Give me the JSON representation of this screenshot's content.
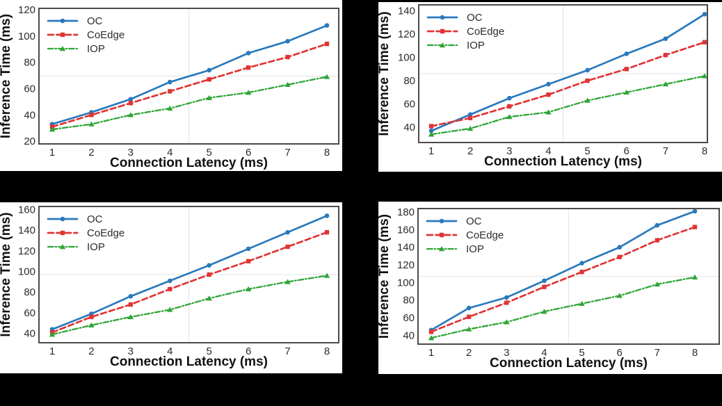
{
  "page": {
    "background": "#000000"
  },
  "shared": {
    "xlabel": "Connection Latency (ms)",
    "ylabel": "Inference Time (ms)",
    "legend": [
      "OC",
      "CoEdge",
      "IOP"
    ]
  },
  "colors": {
    "oc": "#2979bd",
    "coedge": "#e03434",
    "iop": "#2da535",
    "spine": "#4a4a4a",
    "tick_text": "#2b2b2b",
    "label_text": "#111111",
    "grid": "#e4e7ea",
    "panel_bg": "#ffffff"
  },
  "chart_data": [
    {
      "type": "line",
      "position": "top-left",
      "xlabel": "Connection Latency (ms)",
      "ylabel": "Inference Time (ms)",
      "x": [
        1,
        2,
        3,
        4,
        5,
        6,
        7,
        8
      ],
      "xticks": [
        1,
        2,
        3,
        4,
        5,
        6,
        7,
        8
      ],
      "xlim": [
        0.65,
        8.3
      ],
      "yticks": [
        20,
        40,
        60,
        80,
        100,
        120
      ],
      "ylim": [
        18,
        121
      ],
      "grid": "single faint center cross",
      "legend_position": "upper left",
      "series": [
        {
          "name": "OC",
          "color": "#2979bd",
          "linestyle": "solid",
          "marker": "circle",
          "values": [
            33,
            42,
            52,
            65,
            74,
            87,
            96,
            108
          ]
        },
        {
          "name": "CoEdge",
          "color": "#e03434",
          "linestyle": "dashed",
          "marker": "square",
          "values": [
            31,
            40,
            49,
            58,
            67,
            76,
            84,
            94
          ]
        },
        {
          "name": "IOP",
          "color": "#2da535",
          "linestyle": "dashdot",
          "marker": "triangle",
          "values": [
            29,
            33,
            40,
            45,
            53,
            57,
            63,
            69
          ]
        }
      ]
    },
    {
      "type": "line",
      "position": "top-right",
      "xlabel": "Connection Latency (ms)",
      "ylabel": "Inference Time (ms)",
      "x": [
        1,
        2,
        3,
        4,
        5,
        6,
        7,
        8
      ],
      "xticks": [
        1,
        2,
        3,
        4,
        5,
        6,
        7,
        8
      ],
      "xlim": [
        0.65,
        8.3
      ],
      "yticks": [
        40,
        60,
        80,
        100,
        120,
        140
      ],
      "ylim": [
        27,
        145
      ],
      "grid": "single faint center cross",
      "legend_position": "upper left",
      "series": [
        {
          "name": "OC",
          "color": "#2979bd",
          "linestyle": "solid",
          "marker": "circle",
          "values": [
            37,
            51,
            65,
            77,
            89,
            103,
            116,
            137
          ]
        },
        {
          "name": "CoEdge",
          "color": "#e03434",
          "linestyle": "dashed",
          "marker": "square",
          "values": [
            41,
            48,
            58,
            68,
            80,
            90,
            102,
            113
          ]
        },
        {
          "name": "IOP",
          "color": "#2da535",
          "linestyle": "dashdot",
          "marker": "triangle",
          "values": [
            34,
            39,
            49,
            53,
            63,
            70,
            77,
            84
          ]
        }
      ]
    },
    {
      "type": "line",
      "position": "bottom-left",
      "xlabel": "Connection Latency (ms)",
      "ylabel": "Inference Time (ms)",
      "x": [
        1,
        2,
        3,
        4,
        5,
        6,
        7,
        8
      ],
      "xticks": [
        1,
        2,
        3,
        4,
        5,
        6,
        7,
        8
      ],
      "xlim": [
        0.65,
        8.3
      ],
      "yticks": [
        40,
        60,
        80,
        100,
        120,
        140,
        160
      ],
      "ylim": [
        31,
        163
      ],
      "grid": "single faint center cross",
      "legend_position": "upper left",
      "series": [
        {
          "name": "OC",
          "color": "#2979bd",
          "linestyle": "solid",
          "marker": "circle",
          "values": [
            44,
            59,
            76,
            91,
            106,
            122,
            138,
            154
          ]
        },
        {
          "name": "CoEdge",
          "color": "#e03434",
          "linestyle": "dashed",
          "marker": "square",
          "values": [
            41,
            56,
            68,
            83,
            97,
            110,
            124,
            138
          ]
        },
        {
          "name": "IOP",
          "color": "#2da535",
          "linestyle": "dashdot",
          "marker": "triangle",
          "values": [
            39,
            48,
            56,
            63,
            74,
            83,
            90,
            96
          ]
        }
      ]
    },
    {
      "type": "line",
      "position": "bottom-right",
      "xlabel": "Connection Latency (ms)",
      "ylabel": "Inference Time (ms)",
      "x": [
        1,
        2,
        3,
        4,
        5,
        6,
        7,
        8
      ],
      "xticks": [
        1,
        2,
        3,
        4,
        5,
        6,
        7,
        8
      ],
      "xlim": [
        0.65,
        8.3
      ],
      "yticks": [
        40,
        60,
        80,
        100,
        120,
        140,
        160,
        180
      ],
      "ylim": [
        30,
        184
      ],
      "grid": "single faint center cross",
      "legend_position": "upper left",
      "series": [
        {
          "name": "OC",
          "color": "#2979bd",
          "linestyle": "solid",
          "marker": "circle",
          "values": [
            46,
            71,
            83,
            102,
            122,
            140,
            165,
            181
          ]
        },
        {
          "name": "CoEdge",
          "color": "#e03434",
          "linestyle": "dashed",
          "marker": "square",
          "values": [
            44,
            61,
            77,
            95,
            112,
            129,
            148,
            163
          ]
        },
        {
          "name": "IOP",
          "color": "#2da535",
          "linestyle": "dashdot",
          "marker": "triangle",
          "values": [
            37,
            47,
            55,
            67,
            76,
            85,
            98,
            106
          ]
        }
      ]
    }
  ]
}
